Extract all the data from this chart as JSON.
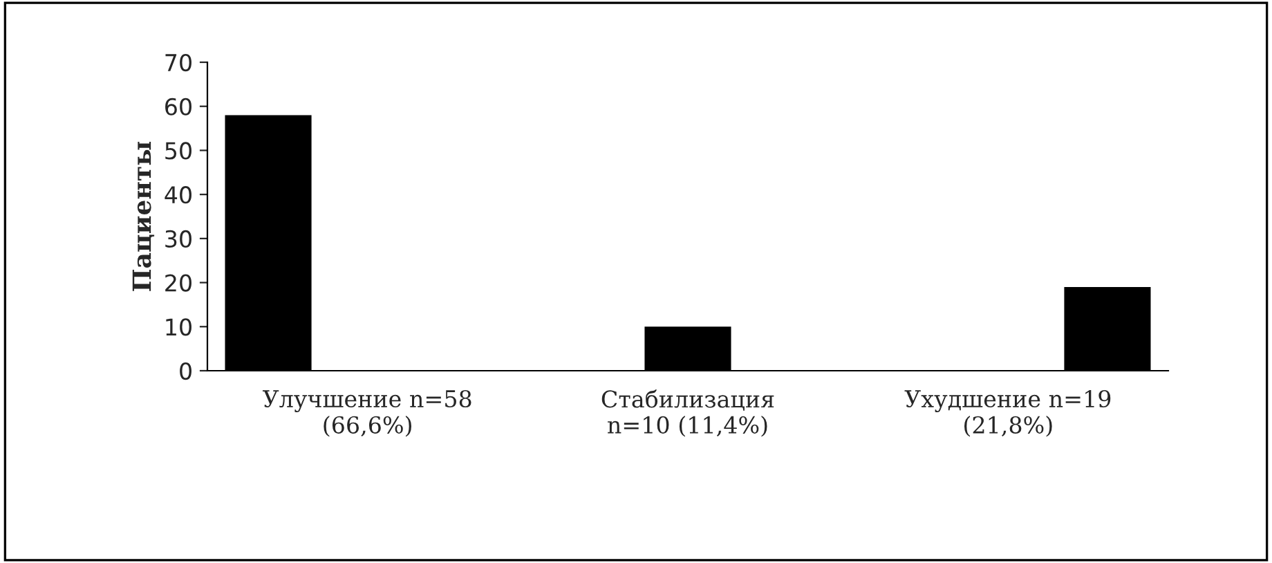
{
  "chart_data": {
    "type": "bar",
    "ylabel": "Пациенты",
    "categories": [
      "Улучшение n=58\n(66,6%)",
      "Стабилизация\nn=10 (11,4%)",
      "Ухудшение n=19\n(21,8%)"
    ],
    "series": [
      {
        "color": "#000000",
        "values": [
          58,
          null,
          null
        ]
      },
      {
        "color": "#000000",
        "values": [
          null,
          10,
          null
        ]
      },
      {
        "color": "#000000",
        "values": [
          null,
          null,
          19
        ]
      }
    ],
    "ylim": [
      0,
      70
    ],
    "yticks": [
      0,
      10,
      20,
      30,
      40,
      50,
      60,
      70
    ],
    "grid": false,
    "legend": false
  }
}
